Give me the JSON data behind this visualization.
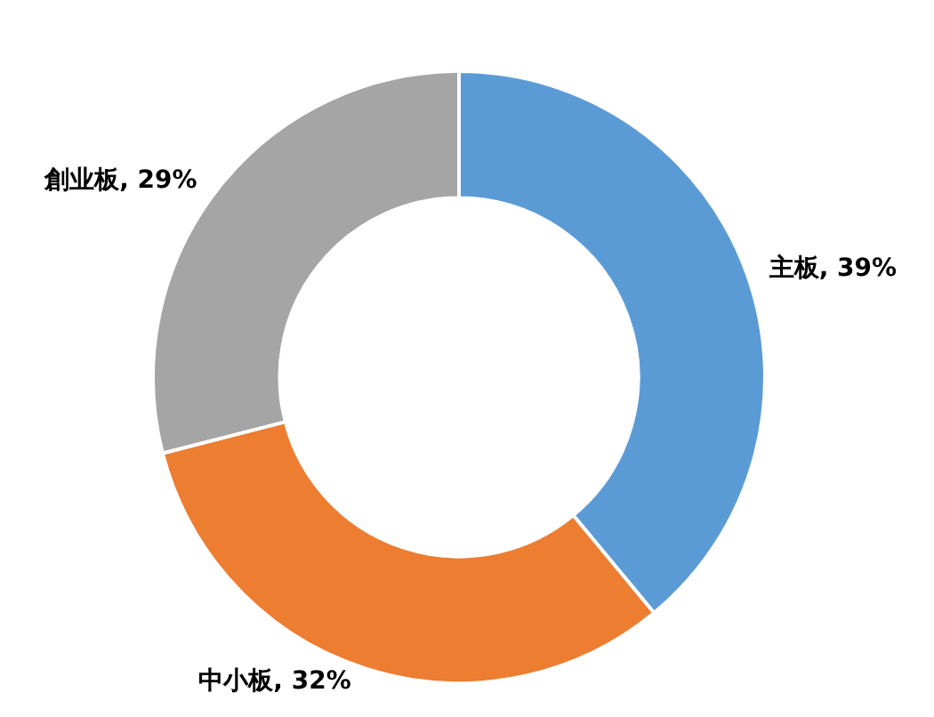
{
  "chart_data": {
    "type": "donut",
    "categories": [
      "主板",
      "中小板",
      "創业板"
    ],
    "values": [
      39,
      32,
      29
    ],
    "colors": [
      "#5b9bd5",
      "#ed7d31",
      "#a5a5a5"
    ],
    "value_labels": [
      "39%",
      "32%",
      "29%"
    ],
    "legend": false
  }
}
